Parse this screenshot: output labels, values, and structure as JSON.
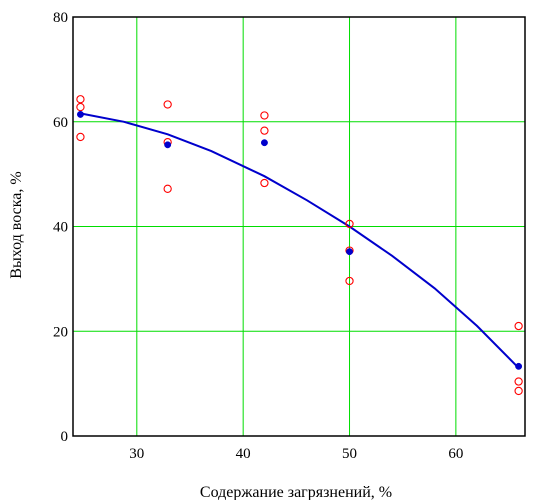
{
  "chart_data": {
    "type": "scatter",
    "title": "",
    "xlabel": "Содержание загрязнений, %",
    "ylabel": "Выход воска, %",
    "xlim": [
      24,
      66.5
    ],
    "ylim": [
      0,
      80
    ],
    "x_ticks": [
      30,
      40,
      50,
      60
    ],
    "y_ticks": [
      0,
      20,
      40,
      60,
      80
    ],
    "x_tick_labels": [
      "30",
      "40",
      "50",
      "60"
    ],
    "y_tick_labels": [
      "0",
      "20",
      "40",
      "60",
      "80"
    ],
    "grid": true,
    "colors": {
      "grid": "#00dd00",
      "observed": "#ff0000",
      "mean": "#0000cc",
      "trend": "#0000cc",
      "frame": "#000000"
    },
    "series": [
      {
        "marker": "open-circle",
        "points": [
          {
            "x": 24.7,
            "y": 64.3
          },
          {
            "x": 24.7,
            "y": 62.8
          },
          {
            "x": 24.7,
            "y": 57.1
          },
          {
            "x": 32.9,
            "y": 63.3
          },
          {
            "x": 32.9,
            "y": 56.1
          },
          {
            "x": 32.9,
            "y": 47.2
          },
          {
            "x": 42.0,
            "y": 61.2
          },
          {
            "x": 42.0,
            "y": 58.3
          },
          {
            "x": 42.0,
            "y": 48.3
          },
          {
            "x": 50.0,
            "y": 40.5
          },
          {
            "x": 50.0,
            "y": 35.4
          },
          {
            "x": 50.0,
            "y": 29.6
          },
          {
            "x": 65.9,
            "y": 21.0
          },
          {
            "x": 65.9,
            "y": 10.4
          },
          {
            "x": 65.9,
            "y": 8.6
          }
        ]
      },
      {
        "marker": "filled-circle",
        "points": [
          {
            "x": 24.7,
            "y": 61.4
          },
          {
            "x": 32.9,
            "y": 55.6
          },
          {
            "x": 42.0,
            "y": 56.0
          },
          {
            "x": 50.0,
            "y": 35.2
          },
          {
            "x": 65.9,
            "y": 13.3
          }
        ]
      },
      {
        "marker": "line",
        "points": [
          {
            "x": 24.7,
            "y": 61.6
          },
          {
            "x": 28.8,
            "y": 60.0
          },
          {
            "x": 32.9,
            "y": 57.6
          },
          {
            "x": 37.0,
            "y": 54.4
          },
          {
            "x": 42.0,
            "y": 49.6
          },
          {
            "x": 46.0,
            "y": 45.0
          },
          {
            "x": 50.0,
            "y": 40.0
          },
          {
            "x": 54.0,
            "y": 34.4
          },
          {
            "x": 58.0,
            "y": 28.2
          },
          {
            "x": 62.0,
            "y": 21.0
          },
          {
            "x": 65.9,
            "y": 13.0
          }
        ]
      }
    ]
  }
}
